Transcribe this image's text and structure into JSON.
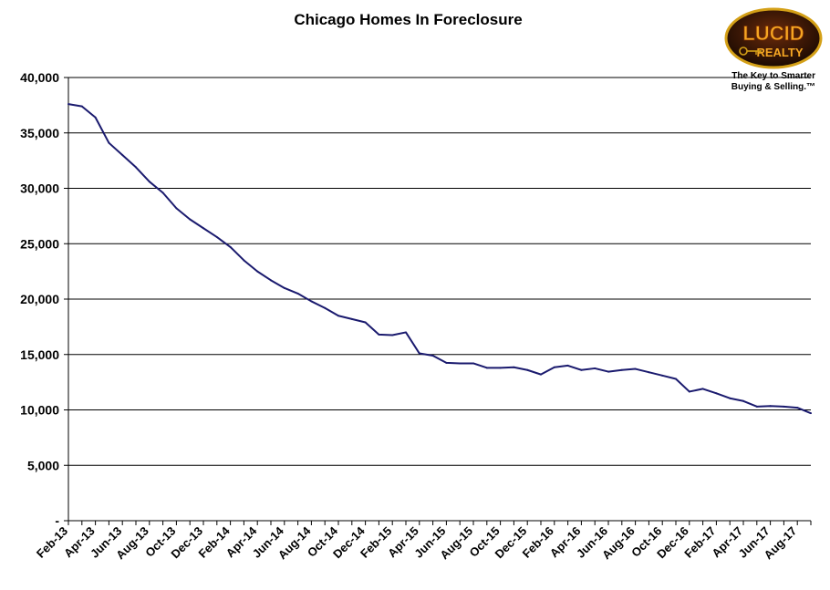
{
  "chart_data": {
    "type": "line",
    "title": "Chicago Homes In Foreclosure",
    "xlabel": "",
    "ylabel": "",
    "ylim": [
      0,
      40000
    ],
    "yticks": [
      0,
      5000,
      10000,
      15000,
      20000,
      25000,
      30000,
      35000,
      40000
    ],
    "ytick_labels": [
      "-",
      "5,000",
      "10,000",
      "15,000",
      "20,000",
      "25,000",
      "30,000",
      "35,000",
      "40,000"
    ],
    "x_tick_labels": [
      "Feb-13",
      "Apr-13",
      "Jun-13",
      "Aug-13",
      "Oct-13",
      "Dec-13",
      "Feb-14",
      "Apr-14",
      "Jun-14",
      "Aug-14",
      "Oct-14",
      "Dec-14",
      "Feb-15",
      "Apr-15",
      "Jun-15",
      "Aug-15",
      "Oct-15",
      "Dec-15",
      "Feb-16",
      "Apr-16",
      "Jun-16",
      "Aug-16",
      "Oct-16",
      "Dec-16",
      "Feb-17",
      "Apr-17",
      "Jun-17",
      "Aug-17"
    ],
    "grid": "horizontal",
    "line_color": "#1a1a6e",
    "categories": [
      "Feb-13",
      "Mar-13",
      "Apr-13",
      "May-13",
      "Jun-13",
      "Jul-13",
      "Aug-13",
      "Sep-13",
      "Oct-13",
      "Nov-13",
      "Dec-13",
      "Jan-14",
      "Feb-14",
      "Mar-14",
      "Apr-14",
      "May-14",
      "Jun-14",
      "Jul-14",
      "Aug-14",
      "Sep-14",
      "Oct-14",
      "Nov-14",
      "Dec-14",
      "Jan-15",
      "Feb-15",
      "Mar-15",
      "Apr-15",
      "May-15",
      "Jun-15",
      "Jul-15",
      "Aug-15",
      "Sep-15",
      "Oct-15",
      "Nov-15",
      "Dec-15",
      "Jan-16",
      "Feb-16",
      "Mar-16",
      "Apr-16",
      "May-16",
      "Jun-16",
      "Jul-16",
      "Aug-16",
      "Sep-16",
      "Oct-16",
      "Nov-16",
      "Dec-16",
      "Jan-17",
      "Feb-17",
      "Mar-17",
      "Apr-17",
      "May-17",
      "Jun-17",
      "Jul-17",
      "Aug-17",
      "Sep-17"
    ],
    "series": [
      {
        "values": [
          37600,
          37400,
          36400,
          34100,
          33000,
          31900,
          30600,
          29600,
          28200,
          27200,
          26400,
          25600,
          24700,
          23500,
          22500,
          21700,
          21000,
          20500,
          19800,
          19200,
          18500,
          18200,
          17900,
          16800,
          16750,
          17000,
          15100,
          14900,
          14250,
          14200,
          14200,
          13800,
          13800,
          13850,
          13600,
          13200,
          13850,
          14000,
          13600,
          13750,
          13450,
          13600,
          13700,
          13400,
          13100,
          12800,
          11650,
          11900,
          11500,
          11050,
          10800,
          10300,
          10350,
          10300,
          10200,
          9700
        ]
      }
    ]
  },
  "logo": {
    "brand_top": "LUCID",
    "brand_bottom": "REALTY",
    "tagline_line1": "The Key to Smarter",
    "tagline_line2": "Buying & Selling.™"
  }
}
